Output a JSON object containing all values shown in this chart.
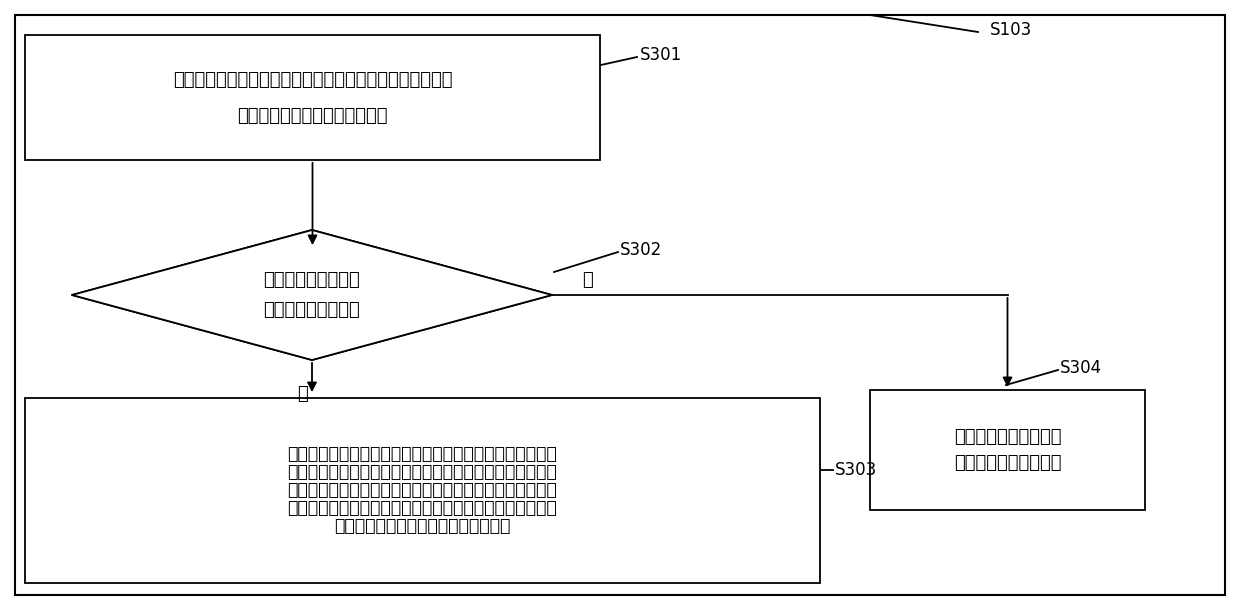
{
  "background_color": "#ffffff",
  "border_color": "#000000",
  "title_label": "S103",
  "box1": {
    "text_line1": "从所述目的仓位集中任选一个仓位作为第一目的仓位，并计",
    "text_line2": "算所述第一目的仓位的剩余体积",
    "label": "S301"
  },
  "diamond": {
    "text_line1": "判断所述源仓位集中",
    "text_line2": "是否存在第一源仓位",
    "label": "S302",
    "yes_label": "是",
    "no_label": "否"
  },
  "box3": {
    "text": "根据所述库存信息，确定所述第一源仓位的可移动库存中的\n所有包装筱的体积；从所述可移动库存中选出，总体积不大\n于所述剩余体积的多个包装筱；将所述多个包装筱作为待整\n理包装筱，并生成将所述待整理包装筱从所述第一源仓位移\n动至所述第一目的仓位的物料整理任务",
    "label": "S303"
  },
  "box4": {
    "text": "将所述第一目的仓位从\n所述目的仓位集中删除",
    "label": "S304"
  }
}
